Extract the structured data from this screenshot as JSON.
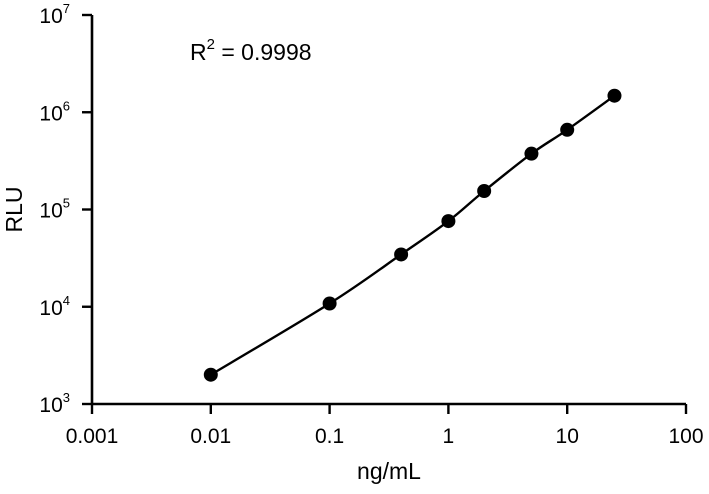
{
  "chart_data": {
    "type": "scatter",
    "title": "",
    "xlabel": "ng/mL",
    "ylabel": "RLU",
    "x_scale": "log",
    "y_scale": "log",
    "xlim": [
      0.001,
      100
    ],
    "ylim": [
      1000,
      10000000
    ],
    "grid": false,
    "x_ticks": [
      {
        "value": 0.001,
        "label": "0.001"
      },
      {
        "value": 0.01,
        "label": "0.01"
      },
      {
        "value": 0.1,
        "label": "0.1"
      },
      {
        "value": 1,
        "label": "1"
      },
      {
        "value": 10,
        "label": "10"
      },
      {
        "value": 100,
        "label": "100"
      }
    ],
    "y_ticks": [
      {
        "value": 1000,
        "base": "10",
        "exp": "3"
      },
      {
        "value": 10000,
        "base": "10",
        "exp": "4"
      },
      {
        "value": 100000,
        "base": "10",
        "exp": "5"
      },
      {
        "value": 1000000,
        "base": "10",
        "exp": "6"
      },
      {
        "value": 10000000,
        "base": "10",
        "exp": "7"
      }
    ],
    "annotation": {
      "prefix": "R",
      "sup": "2",
      "suffix": " = 0.9998"
    },
    "series": [
      {
        "points": [
          {
            "x": 0.01,
            "y": 2000
          },
          {
            "x": 0.1,
            "y": 10800
          },
          {
            "x": 0.4,
            "y": 34500
          },
          {
            "x": 1,
            "y": 76000
          },
          {
            "x": 2,
            "y": 155000
          },
          {
            "x": 5,
            "y": 375000
          },
          {
            "x": 10,
            "y": 660000
          },
          {
            "x": 25,
            "y": 1480000
          }
        ]
      }
    ]
  }
}
